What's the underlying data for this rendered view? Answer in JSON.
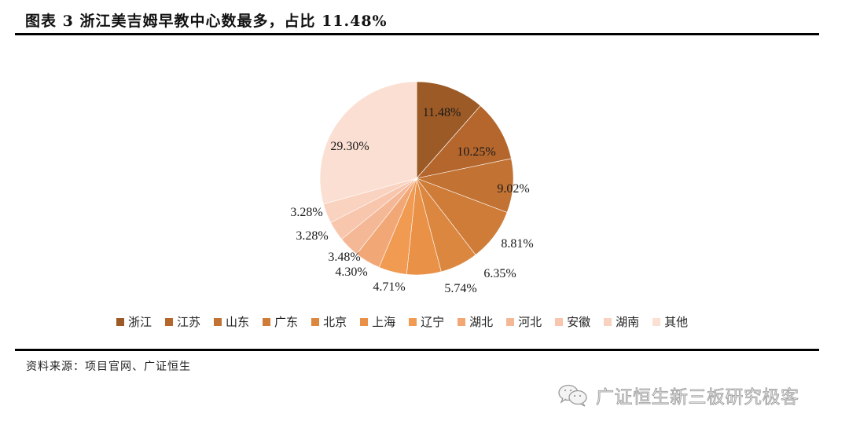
{
  "header": {
    "title": "图表 3 浙江美吉姆早教中心数最多，占比 11.48%"
  },
  "footer": {
    "source": "资料来源：项目官网、广证恒生",
    "watermark": "广证恒生新三板研究极客"
  },
  "chart_data": {
    "type": "pie",
    "title": "图表 3 浙江美吉姆早教中心数最多，占比 11.48%",
    "start_angle": "12 o'clock, clockwise",
    "categories": [
      "浙江",
      "江苏",
      "山东",
      "广东",
      "北京",
      "上海",
      "辽宁",
      "湖北",
      "河北",
      "安徽",
      "湖南",
      "其他"
    ],
    "values": [
      11.48,
      10.25,
      9.02,
      8.81,
      6.35,
      5.74,
      4.71,
      4.3,
      3.48,
      3.28,
      3.28,
      29.3
    ],
    "labels": [
      "11.48%",
      "10.25%",
      "9.02%",
      "8.81%",
      "6.35%",
      "5.74%",
      "4.71%",
      "4.30%",
      "3.48%",
      "3.28%",
      "3.28%",
      "29.30%"
    ],
    "colors": [
      "#9c5a26",
      "#b4662d",
      "#c27232",
      "#cf7c38",
      "#dc8740",
      "#e99147",
      "#f09a52",
      "#f2a876",
      "#f5b896",
      "#f7c6ad",
      "#f9d2c0",
      "#fbdfd2"
    ],
    "unit": "%",
    "legend_position": "bottom"
  }
}
